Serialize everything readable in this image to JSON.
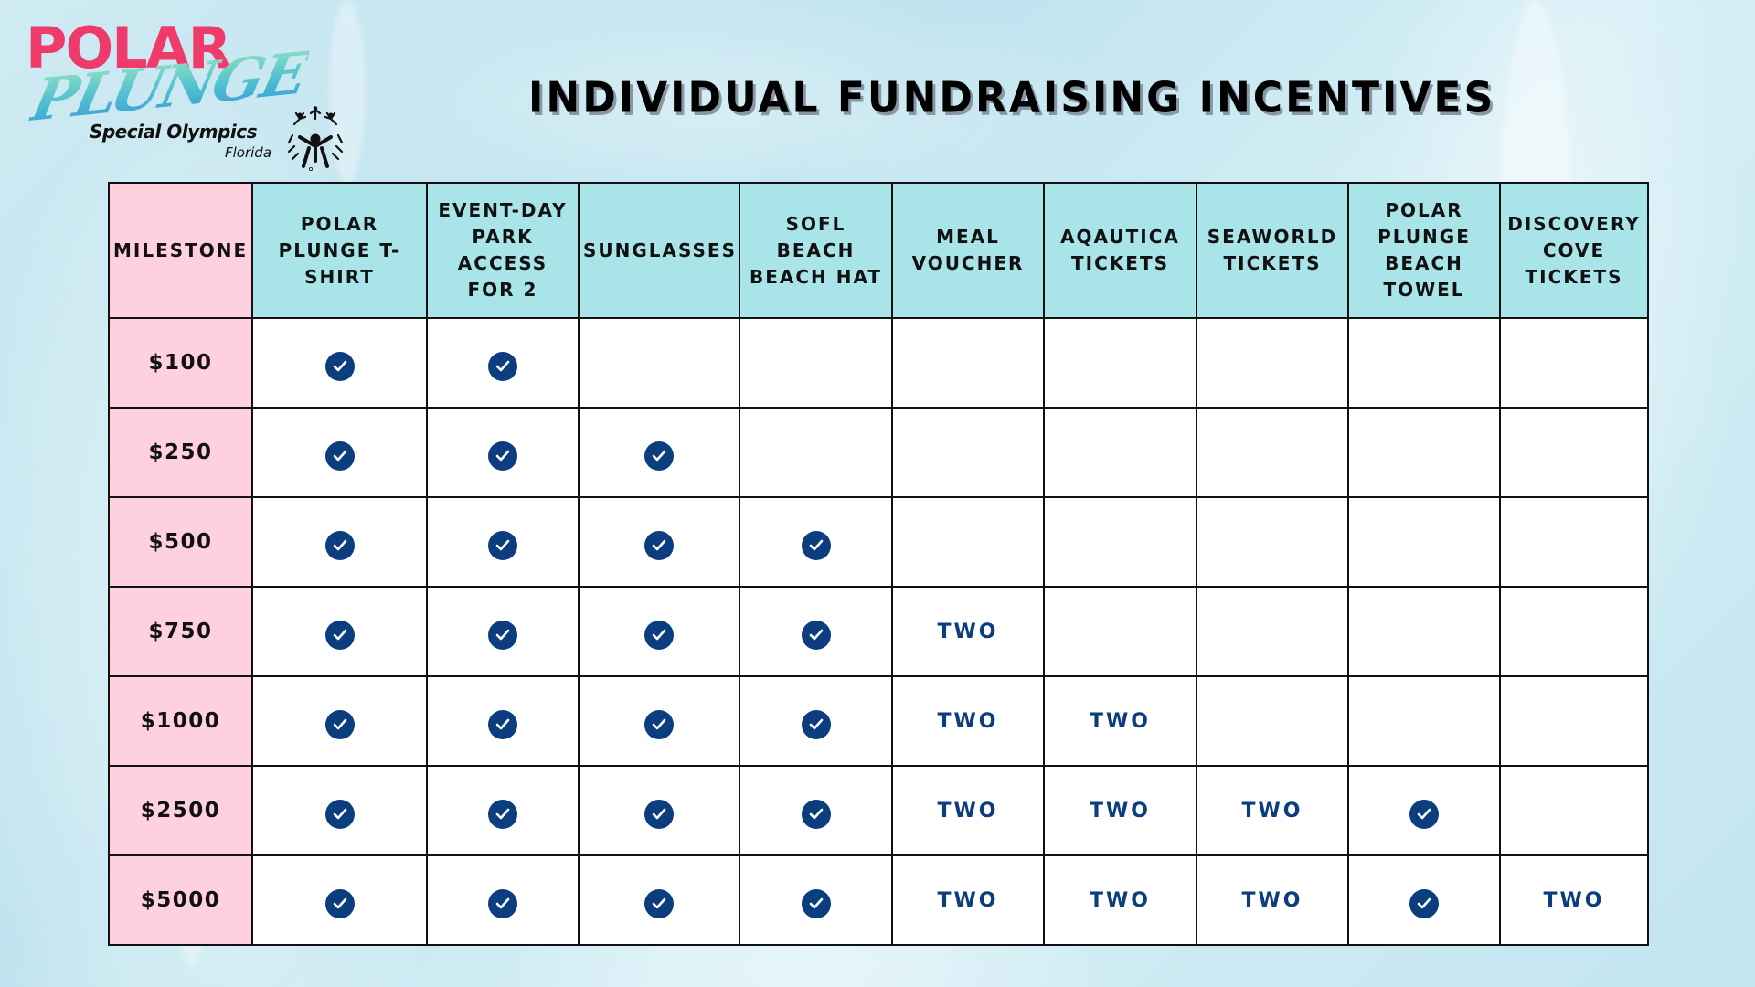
{
  "logo": {
    "line1": "POLAR",
    "line2": "PLUNGE",
    "org": "Special Olympics",
    "region": "Florida"
  },
  "title": "INDIVIDUAL FUNDRAISING INCENTIVES",
  "table": {
    "headers": [
      "MILESTONE",
      "POLAR PLUNGE T-SHIRT",
      "EVENT-DAY PARK ACCESS FOR 2",
      "SUNGLASSES",
      "SOFL BEACH BEACH HAT",
      "MEAL VOUCHER",
      "AQAUTICA TICKETS",
      "SEAWORLD TICKETS",
      "POLAR PLUNGE BEACH TOWEL",
      "DISCOVERY COVE TICKETS"
    ],
    "rows": [
      {
        "milestone": "$100",
        "cells": [
          "check",
          "check",
          "",
          "",
          "",
          "",
          "",
          "",
          ""
        ]
      },
      {
        "milestone": "$250",
        "cells": [
          "check",
          "check",
          "check",
          "",
          "",
          "",
          "",
          "",
          ""
        ]
      },
      {
        "milestone": "$500",
        "cells": [
          "check",
          "check",
          "check",
          "check",
          "",
          "",
          "",
          "",
          ""
        ]
      },
      {
        "milestone": "$750",
        "cells": [
          "check",
          "check",
          "check",
          "check",
          "TWO",
          "",
          "",
          "",
          ""
        ]
      },
      {
        "milestone": "$1000",
        "cells": [
          "check",
          "check",
          "check",
          "check",
          "TWO",
          "TWO",
          "",
          "",
          ""
        ]
      },
      {
        "milestone": "$2500",
        "cells": [
          "check",
          "check",
          "check",
          "check",
          "TWO",
          "TWO",
          "TWO",
          "check",
          ""
        ]
      },
      {
        "milestone": "$5000",
        "cells": [
          "check",
          "check",
          "check",
          "check",
          "TWO",
          "TWO",
          "TWO",
          "check",
          "TWO"
        ]
      }
    ]
  },
  "icons": {
    "check": "check-circle-icon"
  },
  "colors": {
    "header_bg": "#a8e4e8",
    "milestone_bg": "#ffd0de",
    "accent_navy": "#0b3d7f",
    "logo_pink": "#ef3b6c"
  }
}
